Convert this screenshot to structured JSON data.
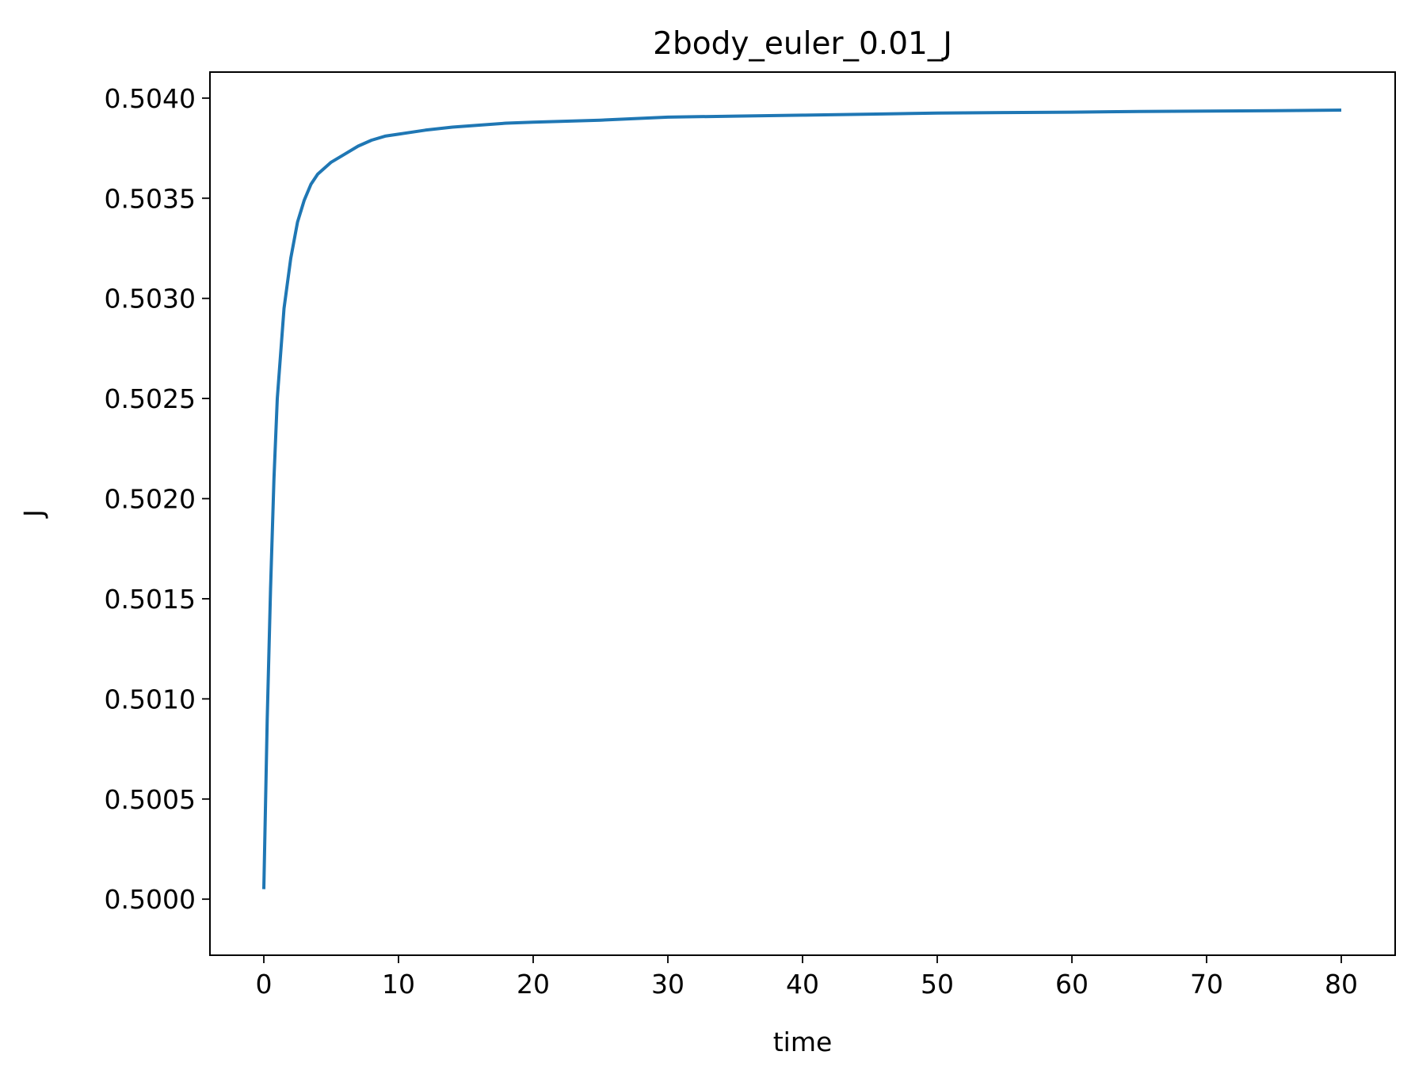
{
  "chart_data": {
    "type": "line",
    "title": "2body_euler_0.01_J",
    "xlabel": "time",
    "ylabel": "J",
    "xlim": [
      -4,
      84
    ],
    "ylim": [
      0.49972,
      0.50413
    ],
    "grid": false,
    "x_ticks": [
      0,
      10,
      20,
      30,
      40,
      50,
      60,
      70,
      80
    ],
    "x_tick_labels": [
      "0",
      "10",
      "20",
      "30",
      "40",
      "50",
      "60",
      "70",
      "80"
    ],
    "y_ticks": [
      0.5,
      0.5005,
      0.501,
      0.5015,
      0.502,
      0.5025,
      0.503,
      0.5035,
      0.504
    ],
    "y_tick_labels": [
      "0.5000",
      "0.5005",
      "0.5010",
      "0.5015",
      "0.5020",
      "0.5025",
      "0.5030",
      "0.5035",
      "0.5040"
    ],
    "series": [
      {
        "color": "#1f77b4",
        "x": [
          0,
          0.25,
          0.5,
          0.75,
          1,
          1.5,
          2,
          2.5,
          3,
          3.5,
          4,
          5,
          6,
          7,
          8,
          9,
          10,
          12,
          14,
          16,
          18,
          20,
          25,
          30,
          35,
          40,
          45,
          50,
          55,
          60,
          65,
          70,
          75,
          80
        ],
        "y": [
          0.50005,
          0.5009,
          0.50155,
          0.5021,
          0.5025,
          0.50295,
          0.5032,
          0.50338,
          0.50349,
          0.50357,
          0.50362,
          0.50368,
          0.50372,
          0.50376,
          0.50379,
          0.50381,
          0.50382,
          0.50384,
          0.503855,
          0.503865,
          0.503875,
          0.50388,
          0.50389,
          0.503905,
          0.50391,
          0.503915,
          0.50392,
          0.503925,
          0.503928,
          0.50393,
          0.503933,
          0.503935,
          0.503937,
          0.50394
        ]
      }
    ]
  }
}
